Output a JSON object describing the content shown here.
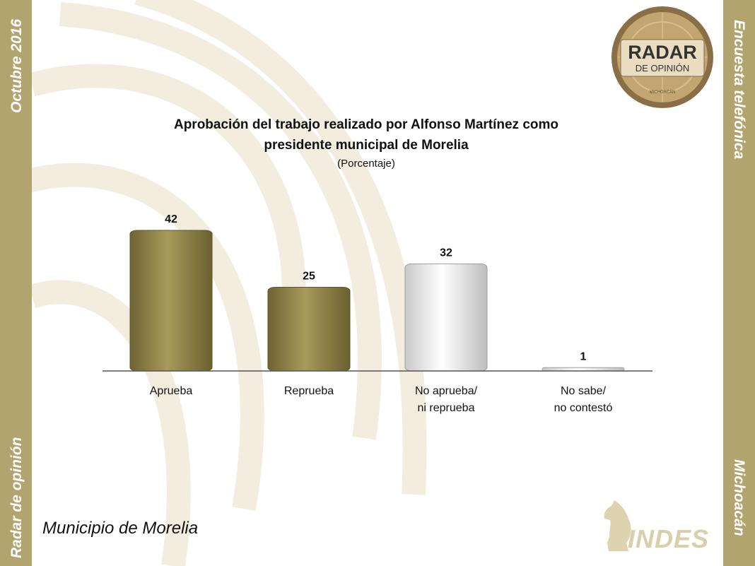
{
  "side_labels": {
    "top_left": "Octubre 2016",
    "bottom_left": "Radar de opinión",
    "top_right": "Encuesta telefónica",
    "bottom_right": "Michoacán"
  },
  "logo": {
    "line1": "RADAR",
    "line2": "DE OPINIÓN",
    "line3": "MICHOACÁN"
  },
  "footer": {
    "title": "Municipio de Morelia",
    "brand": "INDES"
  },
  "colors": {
    "gold_bar": "#8f8246",
    "silver_bar": "#e4e4e4",
    "sidebar": "#b1a46f"
  },
  "chart_data": {
    "type": "bar",
    "title": "Aprobación del trabajo realizado por Alfonso Martínez como presidente municipal de Morelia",
    "title_lines": [
      "Aprobación del trabajo realizado por Alfonso Martínez como",
      "presidente municipal de Morelia"
    ],
    "subtitle": "(Porcentaje)",
    "categories": [
      [
        "Aprueba"
      ],
      [
        "Reprueba"
      ],
      [
        "No aprueba/",
        "ni reprueba"
      ],
      [
        "No sabe/",
        "no contestó"
      ]
    ],
    "values": [
      42,
      25,
      32,
      1
    ],
    "bar_styles": [
      "gold",
      "gold",
      "silver",
      "silver"
    ],
    "ylim": [
      0,
      45
    ],
    "grid": false,
    "legend": "none"
  }
}
